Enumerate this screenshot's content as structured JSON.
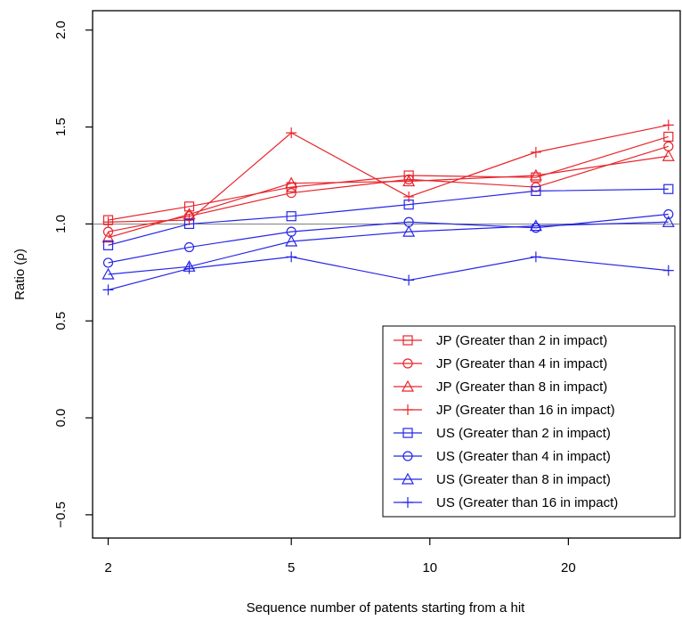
{
  "chart_data": {
    "type": "line",
    "title": "",
    "xlabel": "Sequence number of patents starting from a hit",
    "ylabel": "Ratio (ρ)",
    "x_scale": "log",
    "xlim": [
      1.85,
      35
    ],
    "ylim": [
      -0.62,
      2.1
    ],
    "x_ticks": [
      2,
      5,
      10,
      20
    ],
    "x_tick_labels": [
      "2",
      "5",
      "10",
      "20"
    ],
    "y_ticks": [
      -0.5,
      0.0,
      0.5,
      1.0,
      1.5,
      2.0
    ],
    "y_tick_labels": [
      "−0.5",
      "0.0",
      "0.5",
      "1.0",
      "1.5",
      "2.0"
    ],
    "reference_line": 1.0,
    "grid": false,
    "legend_position": "bottom-right",
    "x": [
      2,
      3,
      5,
      9,
      17,
      33
    ],
    "series": [
      {
        "name": "JP (Greater than 2 in impact)",
        "color": "#e8252b",
        "marker": "square",
        "values": [
          1.02,
          1.09,
          1.19,
          1.25,
          1.24,
          1.45
        ]
      },
      {
        "name": "JP (Greater than 4 in impact)",
        "color": "#e8252b",
        "marker": "circle",
        "values": [
          0.96,
          1.04,
          1.16,
          1.23,
          1.19,
          1.4
        ]
      },
      {
        "name": "JP (Greater than 8 in impact)",
        "color": "#e8252b",
        "marker": "triangle",
        "values": [
          0.93,
          1.05,
          1.21,
          1.22,
          1.25,
          1.35
        ]
      },
      {
        "name": "JP (Greater than 16 in impact)",
        "color": "#e8252b",
        "marker": "plus",
        "values": [
          1.01,
          1.02,
          1.47,
          1.14,
          1.37,
          1.51
        ]
      },
      {
        "name": "US (Greater than 2 in impact)",
        "color": "#2626e8",
        "marker": "square",
        "values": [
          0.89,
          1.0,
          1.04,
          1.1,
          1.17,
          1.18
        ]
      },
      {
        "name": "US (Greater than 4 in impact)",
        "color": "#2626e8",
        "marker": "circle",
        "values": [
          0.8,
          0.88,
          0.96,
          1.01,
          0.98,
          1.05
        ]
      },
      {
        "name": "US (Greater than 8 in impact)",
        "color": "#2626e8",
        "marker": "triangle",
        "values": [
          0.74,
          0.78,
          0.91,
          0.96,
          0.99,
          1.01
        ]
      },
      {
        "name": "US (Greater than 16 in impact)",
        "color": "#2626e8",
        "marker": "plus",
        "values": [
          0.66,
          0.77,
          0.83,
          0.71,
          0.83,
          0.76
        ]
      }
    ]
  }
}
